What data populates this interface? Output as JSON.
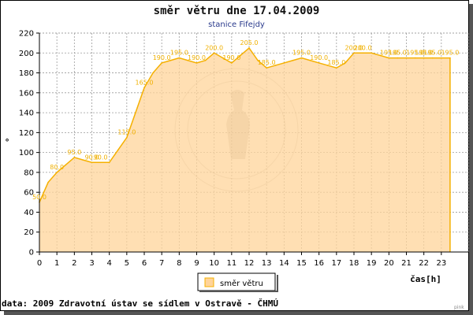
{
  "header": {
    "title": "směr větru dne 17.04.2009",
    "subtitle": "stanice Fifejdy"
  },
  "footer": {
    "source": "data: 2009 Zdravotní ústav se sídlem v Ostravě - ČHMÚ",
    "watermark": "pink"
  },
  "legend": {
    "label": "směr větru",
    "placement": "bottom-center"
  },
  "colors": {
    "fill": "#ffd49a",
    "line": "#f5b000",
    "label": "#f0b000"
  },
  "chart_data": {
    "type": "area",
    "title": "směr větru dne 17.04.2009",
    "subtitle": "stanice Fifejdy",
    "xlabel": "čas[h]",
    "ylabel": "°",
    "xlim": [
      0,
      24
    ],
    "ylim": [
      0,
      220
    ],
    "yticks": [
      0,
      20,
      40,
      60,
      80,
      100,
      120,
      140,
      160,
      180,
      200,
      220
    ],
    "xticks": [
      0,
      1,
      2,
      3,
      4,
      5,
      6,
      7,
      8,
      9,
      10,
      11,
      12,
      13,
      14,
      15,
      16,
      17,
      18,
      19,
      20,
      21,
      22,
      23
    ],
    "grid": true,
    "series": [
      {
        "name": "směr větru",
        "x": [
          0,
          0.5,
          1,
          1.5,
          2,
          2.5,
          3,
          3.5,
          4,
          4.5,
          5,
          5.5,
          6,
          6.5,
          7,
          7.5,
          8,
          8.5,
          9,
          9.5,
          10,
          10.5,
          11,
          11.5,
          12,
          12.5,
          13,
          13.5,
          14,
          14.5,
          15,
          15.5,
          16,
          16.5,
          17,
          17.5,
          18,
          18.5,
          19,
          19.5,
          20,
          20.5,
          21,
          21.5,
          22,
          22.5,
          23,
          23.5
        ],
        "values": [
          50.0,
          70.0,
          80.0,
          87.5,
          95.0,
          92.5,
          90.0,
          90.0,
          90.0,
          102.5,
          115.0,
          140.0,
          165.0,
          180.0,
          190.0,
          192.5,
          195.0,
          192.5,
          190.0,
          192.5,
          200.0,
          195.0,
          190.0,
          197.5,
          205.0,
          192.5,
          185.0,
          187.5,
          190.0,
          192.5,
          195.0,
          192.5,
          190.0,
          187.5,
          185.0,
          190.0,
          200.0,
          200.0,
          200.0,
          197.5,
          195.0,
          195.0,
          195.0,
          195.0,
          195.0,
          195.0,
          195.0,
          195.0
        ],
        "labels": [
          "50.0",
          "",
          "80.0",
          "",
          "95.0",
          "",
          "90.0",
          "90.0",
          "",
          "",
          "115.0",
          "",
          "165.0",
          "",
          "190.0",
          "",
          "195.0",
          "",
          "190.0",
          "",
          "200.0",
          "",
          "190.0",
          "",
          "205.0",
          "",
          "185.0",
          "",
          "",
          "",
          "195.0",
          "",
          "190.0",
          "",
          "185.0",
          "",
          "200.0",
          "200.0",
          "",
          "",
          "195.0",
          "195.0",
          "",
          "195.0",
          "195.0",
          "195.0",
          "",
          "195.0"
        ]
      }
    ]
  }
}
